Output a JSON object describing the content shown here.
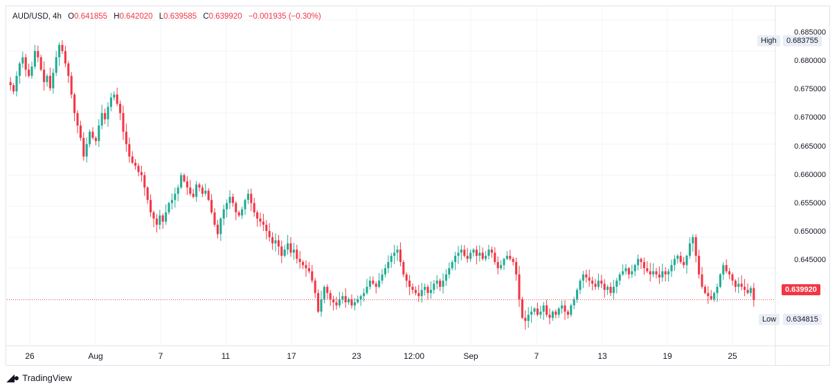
{
  "header": {
    "symbol": "AUD/USD",
    "interval": "4h",
    "open_label": "O",
    "open": "0.641855",
    "high_label": "H",
    "high": "0.642020",
    "low_label": "L",
    "low": "0.639585",
    "close_label": "C",
    "close": "0.639920",
    "change": "−0.001935 (−0.30%)"
  },
  "price_axis": [
    "0.685000",
    "0.680000",
    "0.675000",
    "0.670000",
    "0.665000",
    "0.660000",
    "0.655000",
    "0.650000",
    "0.645000"
  ],
  "markers": {
    "high_label": "High",
    "high_value": "0.683755",
    "low_label": "Low",
    "low_value": "0.634815",
    "current_value": "0.639920"
  },
  "time_axis": [
    "26",
    "Aug",
    "7",
    "11",
    "17",
    "23",
    "12:00",
    "Sep",
    "7",
    "13",
    "19",
    "25"
  ],
  "brand": "TradingView",
  "colors": {
    "up": "#22ab94",
    "down": "#f23645",
    "grid": "#f0f3fa"
  },
  "chart_data": {
    "type": "candlestick",
    "symbol": "AUD/USD",
    "interval": "4h",
    "ylim": [
      0.6325,
      0.686
    ],
    "high": 0.683755,
    "low": 0.634815,
    "last": 0.63992,
    "ohlc_close_path": [
      0.6745,
      0.6735,
      0.676,
      0.678,
      0.679,
      0.677,
      0.676,
      0.6775,
      0.68,
      0.679,
      0.677,
      0.675,
      0.676,
      0.674,
      0.6765,
      0.679,
      0.681,
      0.68,
      0.678,
      0.676,
      0.673,
      0.67,
      0.668,
      0.666,
      0.663,
      0.665,
      0.667,
      0.666,
      0.6655,
      0.668,
      0.67,
      0.669,
      0.671,
      0.6725,
      0.673,
      0.6715,
      0.67,
      0.667,
      0.665,
      0.663,
      0.662,
      0.6615,
      0.6605,
      0.66,
      0.658,
      0.656,
      0.654,
      0.653,
      0.652,
      0.6535,
      0.6525,
      0.654,
      0.6555,
      0.656,
      0.657,
      0.658,
      0.66,
      0.659,
      0.658,
      0.657,
      0.6565,
      0.6585,
      0.658,
      0.657,
      0.6575,
      0.656,
      0.654,
      0.652,
      0.6505,
      0.653,
      0.6545,
      0.6555,
      0.6565,
      0.6555,
      0.654,
      0.6535,
      0.6545,
      0.656,
      0.657,
      0.6555,
      0.654,
      0.653,
      0.6525,
      0.652,
      0.651,
      0.65,
      0.649,
      0.6495,
      0.6485,
      0.647,
      0.648,
      0.649,
      0.6475,
      0.648,
      0.6465,
      0.646,
      0.6455,
      0.645,
      0.6445,
      0.643,
      0.641,
      0.638,
      0.64,
      0.642,
      0.641,
      0.64,
      0.6395,
      0.639,
      0.64,
      0.6405,
      0.6395,
      0.64,
      0.639,
      0.6395,
      0.64,
      0.6405,
      0.641,
      0.642,
      0.643,
      0.6425,
      0.642,
      0.643,
      0.644,
      0.645,
      0.646,
      0.647,
      0.6475,
      0.648,
      0.646,
      0.644,
      0.643,
      0.642,
      0.6415,
      0.641,
      0.6405,
      0.6415,
      0.642,
      0.641,
      0.6415,
      0.6425,
      0.643,
      0.642,
      0.643,
      0.644,
      0.645,
      0.646,
      0.647,
      0.6475,
      0.648,
      0.647,
      0.6465,
      0.6475,
      0.648,
      0.647,
      0.6475,
      0.6465,
      0.647,
      0.648,
      0.6475,
      0.646,
      0.645,
      0.6455,
      0.6465,
      0.647,
      0.6465,
      0.646,
      0.644,
      0.64,
      0.637,
      0.6365,
      0.6375,
      0.638,
      0.6385,
      0.6375,
      0.638,
      0.639,
      0.6375,
      0.637,
      0.638,
      0.6375,
      0.6385,
      0.639,
      0.638,
      0.6375,
      0.639,
      0.64,
      0.6415,
      0.643,
      0.644,
      0.6435,
      0.643,
      0.6425,
      0.642,
      0.643,
      0.6425,
      0.6415,
      0.642,
      0.641,
      0.642,
      0.643,
      0.644,
      0.6445,
      0.645,
      0.644,
      0.6445,
      0.6455,
      0.6465,
      0.646,
      0.645,
      0.6445,
      0.644,
      0.6445,
      0.644,
      0.6435,
      0.6445,
      0.644,
      0.6445,
      0.6455,
      0.6465,
      0.647,
      0.646,
      0.6455,
      0.647,
      0.649,
      0.65,
      0.647,
      0.644,
      0.642,
      0.641,
      0.6405,
      0.64,
      0.641,
      0.642,
      0.644,
      0.6455,
      0.6445,
      0.644,
      0.643,
      0.642,
      0.6425,
      0.642,
      0.6415,
      0.641,
      0.6418,
      0.6399
    ]
  }
}
